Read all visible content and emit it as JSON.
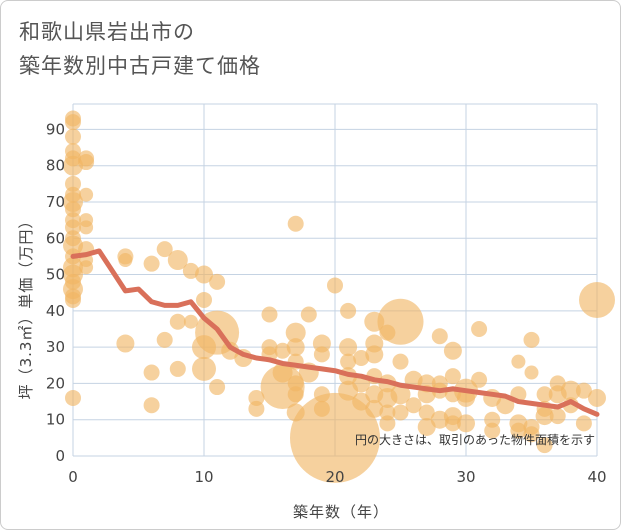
{
  "chart_data": {
    "type": "scatter",
    "title_lines": [
      "和歌山県岩出市の",
      "築年数別中古戸建て価格"
    ],
    "xlabel": "築年数（年）",
    "ylabel": "坪（3.3㎡）単価（万円）",
    "xlim": [
      0,
      40
    ],
    "ylim": [
      0,
      97
    ],
    "x_ticks": [
      0,
      10,
      20,
      30,
      40
    ],
    "y_ticks": [
      0,
      10,
      20,
      30,
      40,
      50,
      60,
      70,
      80,
      90
    ],
    "grid": true,
    "note": "円の大きさは、取引のあった物件面積を示す",
    "colors": {
      "bubble": "#f0b562",
      "trend": "#d9705a",
      "grid": "#c5d3e3"
    },
    "points": [
      {
        "x": 0,
        "y": 93,
        "s": 8
      },
      {
        "x": 0,
        "y": 92,
        "s": 8
      },
      {
        "x": 0,
        "y": 88,
        "s": 8
      },
      {
        "x": 0,
        "y": 84,
        "s": 8
      },
      {
        "x": 0,
        "y": 82,
        "s": 8
      },
      {
        "x": 0,
        "y": 80,
        "s": 10
      },
      {
        "x": 0,
        "y": 75,
        "s": 8
      },
      {
        "x": 0,
        "y": 72,
        "s": 8
      },
      {
        "x": 0,
        "y": 70,
        "s": 10
      },
      {
        "x": 0,
        "y": 68,
        "s": 8
      },
      {
        "x": 0,
        "y": 65,
        "s": 8
      },
      {
        "x": 0,
        "y": 63,
        "s": 8
      },
      {
        "x": 0,
        "y": 60,
        "s": 8
      },
      {
        "x": 0,
        "y": 58,
        "s": 10
      },
      {
        "x": 0,
        "y": 55,
        "s": 8
      },
      {
        "x": 0,
        "y": 52,
        "s": 10
      },
      {
        "x": 0,
        "y": 50,
        "s": 10
      },
      {
        "x": 0,
        "y": 48,
        "s": 8
      },
      {
        "x": 0,
        "y": 46,
        "s": 10
      },
      {
        "x": 0,
        "y": 44,
        "s": 8
      },
      {
        "x": 0,
        "y": 43,
        "s": 8
      },
      {
        "x": 0,
        "y": 16,
        "s": 8
      },
      {
        "x": 1,
        "y": 82,
        "s": 8
      },
      {
        "x": 1,
        "y": 81,
        "s": 8
      },
      {
        "x": 1,
        "y": 72,
        "s": 7
      },
      {
        "x": 1,
        "y": 65,
        "s": 7
      },
      {
        "x": 1,
        "y": 63,
        "s": 7
      },
      {
        "x": 1,
        "y": 57,
        "s": 8
      },
      {
        "x": 1,
        "y": 54,
        "s": 7
      },
      {
        "x": 1,
        "y": 52,
        "s": 7
      },
      {
        "x": 4,
        "y": 55,
        "s": 8
      },
      {
        "x": 4,
        "y": 54,
        "s": 7
      },
      {
        "x": 4,
        "y": 31,
        "s": 9
      },
      {
        "x": 6,
        "y": 53,
        "s": 8
      },
      {
        "x": 6,
        "y": 23,
        "s": 8
      },
      {
        "x": 6,
        "y": 14,
        "s": 8
      },
      {
        "x": 7,
        "y": 57,
        "s": 8
      },
      {
        "x": 7,
        "y": 32,
        "s": 8
      },
      {
        "x": 8,
        "y": 54,
        "s": 10
      },
      {
        "x": 8,
        "y": 37,
        "s": 8
      },
      {
        "x": 8,
        "y": 24,
        "s": 8
      },
      {
        "x": 9,
        "y": 51,
        "s": 8
      },
      {
        "x": 9,
        "y": 37,
        "s": 7
      },
      {
        "x": 10,
        "y": 50,
        "s": 9
      },
      {
        "x": 10,
        "y": 43,
        "s": 8
      },
      {
        "x": 10,
        "y": 30,
        "s": 12
      },
      {
        "x": 10,
        "y": 24,
        "s": 12
      },
      {
        "x": 11,
        "y": 48,
        "s": 8
      },
      {
        "x": 11,
        "y": 34,
        "s": 22
      },
      {
        "x": 11,
        "y": 19,
        "s": 8
      },
      {
        "x": 12,
        "y": 29,
        "s": 9
      },
      {
        "x": 13,
        "y": 27,
        "s": 9
      },
      {
        "x": 14,
        "y": 16,
        "s": 8
      },
      {
        "x": 14,
        "y": 13,
        "s": 8
      },
      {
        "x": 15,
        "y": 39,
        "s": 8
      },
      {
        "x": 15,
        "y": 30,
        "s": 8
      },
      {
        "x": 15,
        "y": 28,
        "s": 8
      },
      {
        "x": 16,
        "y": 29,
        "s": 8
      },
      {
        "x": 16,
        "y": 23,
        "s": 10
      },
      {
        "x": 16,
        "y": 19,
        "s": 22
      },
      {
        "x": 17,
        "y": 64,
        "s": 8
      },
      {
        "x": 17,
        "y": 34,
        "s": 10
      },
      {
        "x": 17,
        "y": 30,
        "s": 9
      },
      {
        "x": 17,
        "y": 26,
        "s": 8
      },
      {
        "x": 17,
        "y": 20,
        "s": 8
      },
      {
        "x": 17,
        "y": 17,
        "s": 8
      },
      {
        "x": 17,
        "y": 12,
        "s": 9
      },
      {
        "x": 18,
        "y": 39,
        "s": 8
      },
      {
        "x": 18,
        "y": 23,
        "s": 10
      },
      {
        "x": 19,
        "y": 31,
        "s": 9
      },
      {
        "x": 19,
        "y": 28,
        "s": 8
      },
      {
        "x": 19,
        "y": 17,
        "s": 8
      },
      {
        "x": 19,
        "y": 13,
        "s": 8
      },
      {
        "x": 20,
        "y": 47,
        "s": 8
      },
      {
        "x": 20,
        "y": 5,
        "s": 45
      },
      {
        "x": 21,
        "y": 40,
        "s": 8
      },
      {
        "x": 21,
        "y": 30,
        "s": 9
      },
      {
        "x": 21,
        "y": 26,
        "s": 8
      },
      {
        "x": 21,
        "y": 22,
        "s": 9
      },
      {
        "x": 21,
        "y": 18,
        "s": 10
      },
      {
        "x": 22,
        "y": 27,
        "s": 8
      },
      {
        "x": 22,
        "y": 20,
        "s": 9
      },
      {
        "x": 22,
        "y": 15,
        "s": 9
      },
      {
        "x": 23,
        "y": 37,
        "s": 10
      },
      {
        "x": 23,
        "y": 31,
        "s": 9
      },
      {
        "x": 23,
        "y": 28,
        "s": 9
      },
      {
        "x": 23,
        "y": 22,
        "s": 8
      },
      {
        "x": 23,
        "y": 17,
        "s": 9
      },
      {
        "x": 23,
        "y": 13,
        "s": 9
      },
      {
        "x": 24,
        "y": 34,
        "s": 8
      },
      {
        "x": 24,
        "y": 20,
        "s": 9
      },
      {
        "x": 24,
        "y": 16,
        "s": 10
      },
      {
        "x": 24,
        "y": 12,
        "s": 8
      },
      {
        "x": 24,
        "y": 9,
        "s": 8
      },
      {
        "x": 25,
        "y": 37,
        "s": 23
      },
      {
        "x": 25,
        "y": 26,
        "s": 8
      },
      {
        "x": 25,
        "y": 17,
        "s": 10
      },
      {
        "x": 25,
        "y": 12,
        "s": 8
      },
      {
        "x": 26,
        "y": 21,
        "s": 9
      },
      {
        "x": 26,
        "y": 14,
        "s": 8
      },
      {
        "x": 27,
        "y": 20,
        "s": 9
      },
      {
        "x": 27,
        "y": 17,
        "s": 9
      },
      {
        "x": 27,
        "y": 12,
        "s": 8
      },
      {
        "x": 27,
        "y": 8,
        "s": 9
      },
      {
        "x": 28,
        "y": 33,
        "s": 8
      },
      {
        "x": 28,
        "y": 20,
        "s": 8
      },
      {
        "x": 28,
        "y": 18,
        "s": 8
      },
      {
        "x": 28,
        "y": 10,
        "s": 9
      },
      {
        "x": 29,
        "y": 29,
        "s": 9
      },
      {
        "x": 29,
        "y": 22,
        "s": 8
      },
      {
        "x": 29,
        "y": 17,
        "s": 8
      },
      {
        "x": 29,
        "y": 11,
        "s": 9
      },
      {
        "x": 29,
        "y": 9,
        "s": 8
      },
      {
        "x": 30,
        "y": 18,
        "s": 12
      },
      {
        "x": 30,
        "y": 16,
        "s": 9
      },
      {
        "x": 30,
        "y": 9,
        "s": 9
      },
      {
        "x": 31,
        "y": 35,
        "s": 8
      },
      {
        "x": 31,
        "y": 21,
        "s": 8
      },
      {
        "x": 32,
        "y": 16,
        "s": 9
      },
      {
        "x": 32,
        "y": 10,
        "s": 8
      },
      {
        "x": 32,
        "y": 7,
        "s": 8
      },
      {
        "x": 33,
        "y": 14,
        "s": 9
      },
      {
        "x": 34,
        "y": 26,
        "s": 7
      },
      {
        "x": 34,
        "y": 17,
        "s": 8
      },
      {
        "x": 34,
        "y": 9,
        "s": 9
      },
      {
        "x": 34,
        "y": 7,
        "s": 8
      },
      {
        "x": 35,
        "y": 32,
        "s": 8
      },
      {
        "x": 35,
        "y": 23,
        "s": 7
      },
      {
        "x": 35,
        "y": 8,
        "s": 8
      },
      {
        "x": 35,
        "y": 6,
        "s": 8
      },
      {
        "x": 36,
        "y": 17,
        "s": 8
      },
      {
        "x": 36,
        "y": 13,
        "s": 8
      },
      {
        "x": 36,
        "y": 11,
        "s": 9
      },
      {
        "x": 36,
        "y": 3,
        "s": 8
      },
      {
        "x": 37,
        "y": 20,
        "s": 8
      },
      {
        "x": 37,
        "y": 17,
        "s": 9
      },
      {
        "x": 37,
        "y": 11,
        "s": 8
      },
      {
        "x": 38,
        "y": 18,
        "s": 10
      },
      {
        "x": 38,
        "y": 14,
        "s": 8
      },
      {
        "x": 39,
        "y": 18,
        "s": 8
      },
      {
        "x": 39,
        "y": 9,
        "s": 8
      },
      {
        "x": 40,
        "y": 43,
        "s": 18
      },
      {
        "x": 40,
        "y": 16,
        "s": 9
      }
    ],
    "trend": [
      {
        "x": 0,
        "y": 55
      },
      {
        "x": 1,
        "y": 55.5
      },
      {
        "x": 2,
        "y": 56.5
      },
      {
        "x": 3,
        "y": 51
      },
      {
        "x": 4,
        "y": 45.5
      },
      {
        "x": 5,
        "y": 46
      },
      {
        "x": 6,
        "y": 42.5
      },
      {
        "x": 7,
        "y": 41.5
      },
      {
        "x": 8,
        "y": 41.5
      },
      {
        "x": 9,
        "y": 42.5
      },
      {
        "x": 10,
        "y": 38
      },
      {
        "x": 11,
        "y": 35
      },
      {
        "x": 12,
        "y": 30
      },
      {
        "x": 13,
        "y": 28
      },
      {
        "x": 14,
        "y": 27
      },
      {
        "x": 15,
        "y": 26.5
      },
      {
        "x": 16,
        "y": 25.5
      },
      {
        "x": 17,
        "y": 25
      },
      {
        "x": 18,
        "y": 24.5
      },
      {
        "x": 19,
        "y": 24
      },
      {
        "x": 20,
        "y": 23.5
      },
      {
        "x": 21,
        "y": 22.5
      },
      {
        "x": 22,
        "y": 22
      },
      {
        "x": 23,
        "y": 21
      },
      {
        "x": 24,
        "y": 20.5
      },
      {
        "x": 25,
        "y": 19.5
      },
      {
        "x": 26,
        "y": 19
      },
      {
        "x": 27,
        "y": 18.5
      },
      {
        "x": 28,
        "y": 18
      },
      {
        "x": 29,
        "y": 18.5
      },
      {
        "x": 30,
        "y": 18
      },
      {
        "x": 31,
        "y": 17.5
      },
      {
        "x": 32,
        "y": 17
      },
      {
        "x": 33,
        "y": 16.5
      },
      {
        "x": 34,
        "y": 15
      },
      {
        "x": 35,
        "y": 14.5
      },
      {
        "x": 36,
        "y": 14
      },
      {
        "x": 37,
        "y": 13.5
      },
      {
        "x": 38,
        "y": 15
      },
      {
        "x": 39,
        "y": 13
      },
      {
        "x": 40,
        "y": 11.5
      }
    ]
  }
}
